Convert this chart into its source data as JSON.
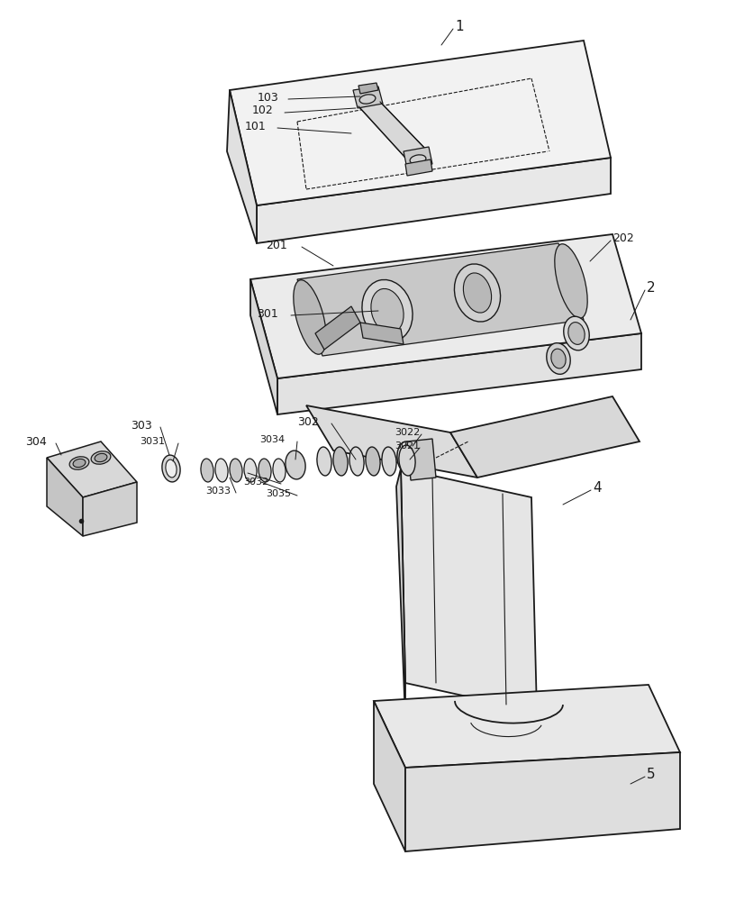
{
  "bg_color": "#ffffff",
  "line_color": "#1a1a1a",
  "figsize": [
    8.26,
    10.0
  ],
  "dpi": 100
}
